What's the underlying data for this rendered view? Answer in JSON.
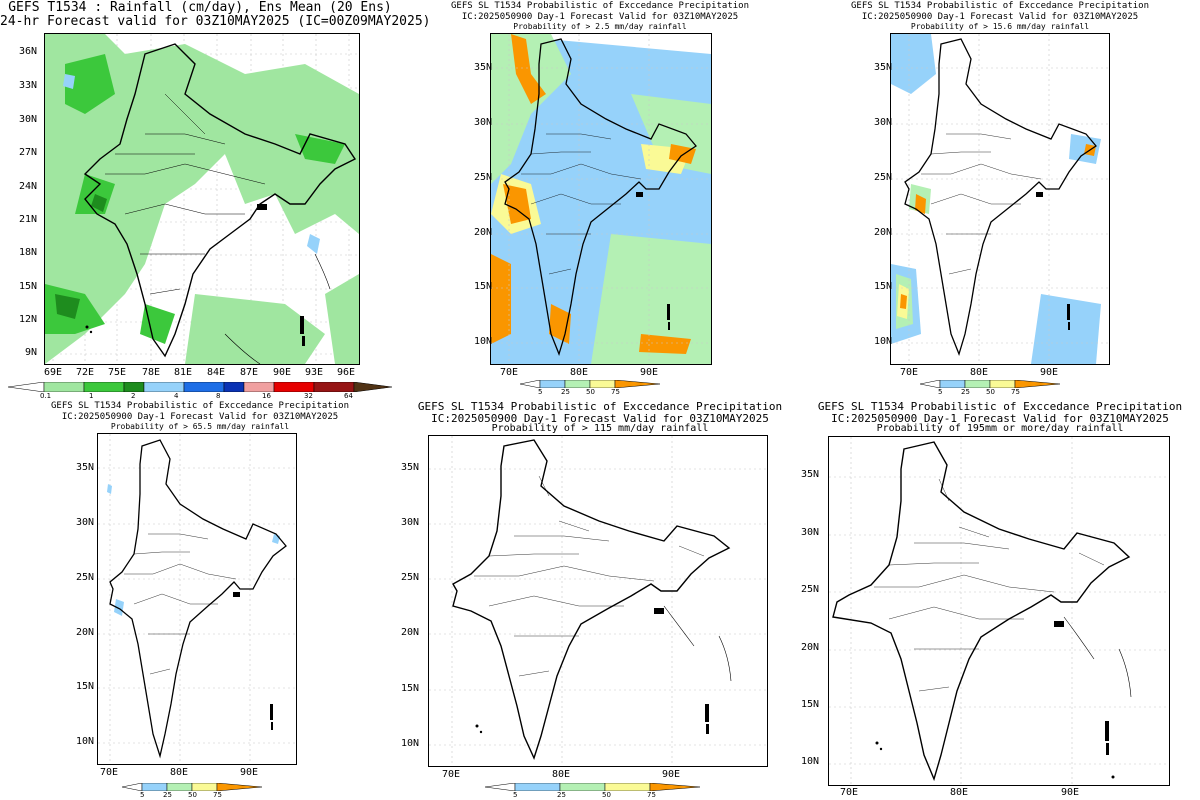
{
  "colors": {
    "light_green": "#a0e6a0",
    "green": "#3cc83c",
    "dark_green": "#1e8c1e",
    "light_blue": "#96d2fa",
    "blue": "#1e6ee6",
    "dark_blue": "#0a32b4",
    "pink": "#f0a0a0",
    "red": "#e60000",
    "dark_red": "#961414",
    "brown": "#503214",
    "prob_blue": "#96d2fa",
    "prob_green": "#b4f0b4",
    "prob_yellow": "#fafa96",
    "prob_orange": "#fa9600",
    "border": "#000000",
    "grid": "#c8c8c8"
  },
  "panels": [
    {
      "id": "mean",
      "title_lines": [
        "GEFS T1534 : Rainfall (cm/day), Ens Mean (20 Ens)",
        "24-hr Forecast valid for 03Z10MAY2025 (IC=00Z09MAY2025)"
      ],
      "lon_ticks": [
        "69E",
        "72E",
        "75E",
        "78E",
        "81E",
        "84E",
        "87E",
        "90E",
        "93E",
        "96E"
      ],
      "lat_ticks": [
        "36N",
        "33N",
        "30N",
        "27N",
        "24N",
        "21N",
        "18N",
        "15N",
        "12N",
        "9N"
      ],
      "colorbar": {
        "labels": [
          "0.1",
          "1",
          "2",
          "4",
          "8",
          "16",
          "32",
          "64"
        ]
      }
    },
    {
      "id": "p2_5",
      "title_lines": [
        "GEFS SL T1534 Probabilistic of Exccedance Precipitation",
        "IC:2025050900 Day-1 Forecast Valid for 03Z10MAY2025",
        "Probability of > 2.5 mm/day rainfall"
      ],
      "lon_ticks": [
        "70E",
        "80E",
        "90E"
      ],
      "lat_ticks": [
        "35N",
        "30N",
        "25N",
        "20N",
        "15N",
        "10N"
      ],
      "colorbar": {
        "labels": [
          "5",
          "25",
          "50",
          "75"
        ]
      }
    },
    {
      "id": "p15_6",
      "title_lines": [
        "GEFS SL T1534 Probabilistic of Exccedance Precipitation",
        "IC:2025050900 Day-1 Forecast Valid for 03Z10MAY2025",
        "Probability of > 15.6 mm/day rainfall"
      ],
      "lon_ticks": [
        "70E",
        "80E",
        "90E"
      ],
      "lat_ticks": [
        "35N",
        "30N",
        "25N",
        "20N",
        "15N",
        "10N"
      ],
      "colorbar": {
        "labels": [
          "5",
          "25",
          "50",
          "75"
        ]
      }
    },
    {
      "id": "p65_5",
      "title_lines": [
        "GEFS SL T1534 Probabilistic of Exccedance Precipitation",
        "IC:2025050900 Day-1 Forecast Valid for 03Z10MAY2025",
        "Probability of > 65.5 mm/day rainfall"
      ],
      "lon_ticks": [
        "70E",
        "80E",
        "90E"
      ],
      "lat_ticks": [
        "35N",
        "30N",
        "25N",
        "20N",
        "15N",
        "10N"
      ],
      "colorbar": {
        "labels": [
          "5",
          "25",
          "50",
          "75"
        ]
      }
    },
    {
      "id": "p115",
      "title_lines": [
        "GEFS SL T1534 Probabilistic of Exccedance Precipitation",
        "IC:2025050900 Day-1 Forecast Valid for 03Z10MAY2025",
        "Probability of > 115 mm/day rainfall"
      ],
      "lon_ticks": [
        "70E",
        "80E",
        "90E"
      ],
      "lat_ticks": [
        "35N",
        "30N",
        "25N",
        "20N",
        "15N",
        "10N"
      ],
      "colorbar": {
        "labels": [
          "5",
          "25",
          "50",
          "75"
        ]
      }
    },
    {
      "id": "p195",
      "title_lines": [
        "GEFS SL T1534 Probabilistic of Exccedance Precipitation",
        "IC:2025050900 Day-1 Forecast Valid for 03Z10MAY2025",
        "Probability of 195mm or more/day rainfall"
      ],
      "lon_ticks": [
        "70E",
        "80E",
        "90E"
      ],
      "lat_ticks": [
        "35N",
        "30N",
        "25N",
        "20N",
        "15N",
        "10N"
      ],
      "colorbar": null
    }
  ]
}
